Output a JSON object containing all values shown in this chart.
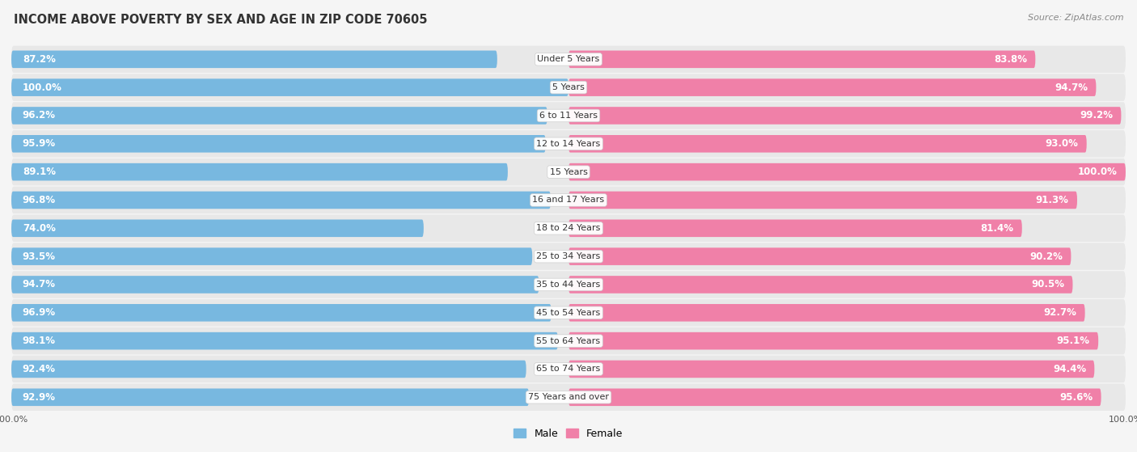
{
  "title": "INCOME ABOVE POVERTY BY SEX AND AGE IN ZIP CODE 70605",
  "source": "Source: ZipAtlas.com",
  "categories": [
    "Under 5 Years",
    "5 Years",
    "6 to 11 Years",
    "12 to 14 Years",
    "15 Years",
    "16 and 17 Years",
    "18 to 24 Years",
    "25 to 34 Years",
    "35 to 44 Years",
    "45 to 54 Years",
    "55 to 64 Years",
    "65 to 74 Years",
    "75 Years and over"
  ],
  "male_values": [
    87.2,
    100.0,
    96.2,
    95.9,
    89.1,
    96.8,
    74.0,
    93.5,
    94.7,
    96.9,
    98.1,
    92.4,
    92.9
  ],
  "female_values": [
    83.8,
    94.7,
    99.2,
    93.0,
    100.0,
    91.3,
    81.4,
    90.2,
    90.5,
    92.7,
    95.1,
    94.4,
    95.6
  ],
  "male_color": "#78b8e0",
  "male_color_light": "#b8d9ee",
  "female_color": "#f080a8",
  "female_color_light": "#f8c0d4",
  "male_label": "Male",
  "female_label": "Female",
  "background_color": "#f5f5f5",
  "row_bg_color": "#e8e8e8",
  "title_fontsize": 10.5,
  "label_fontsize": 8.0,
  "value_fontsize": 8.5,
  "legend_fontsize": 9,
  "source_fontsize": 8
}
